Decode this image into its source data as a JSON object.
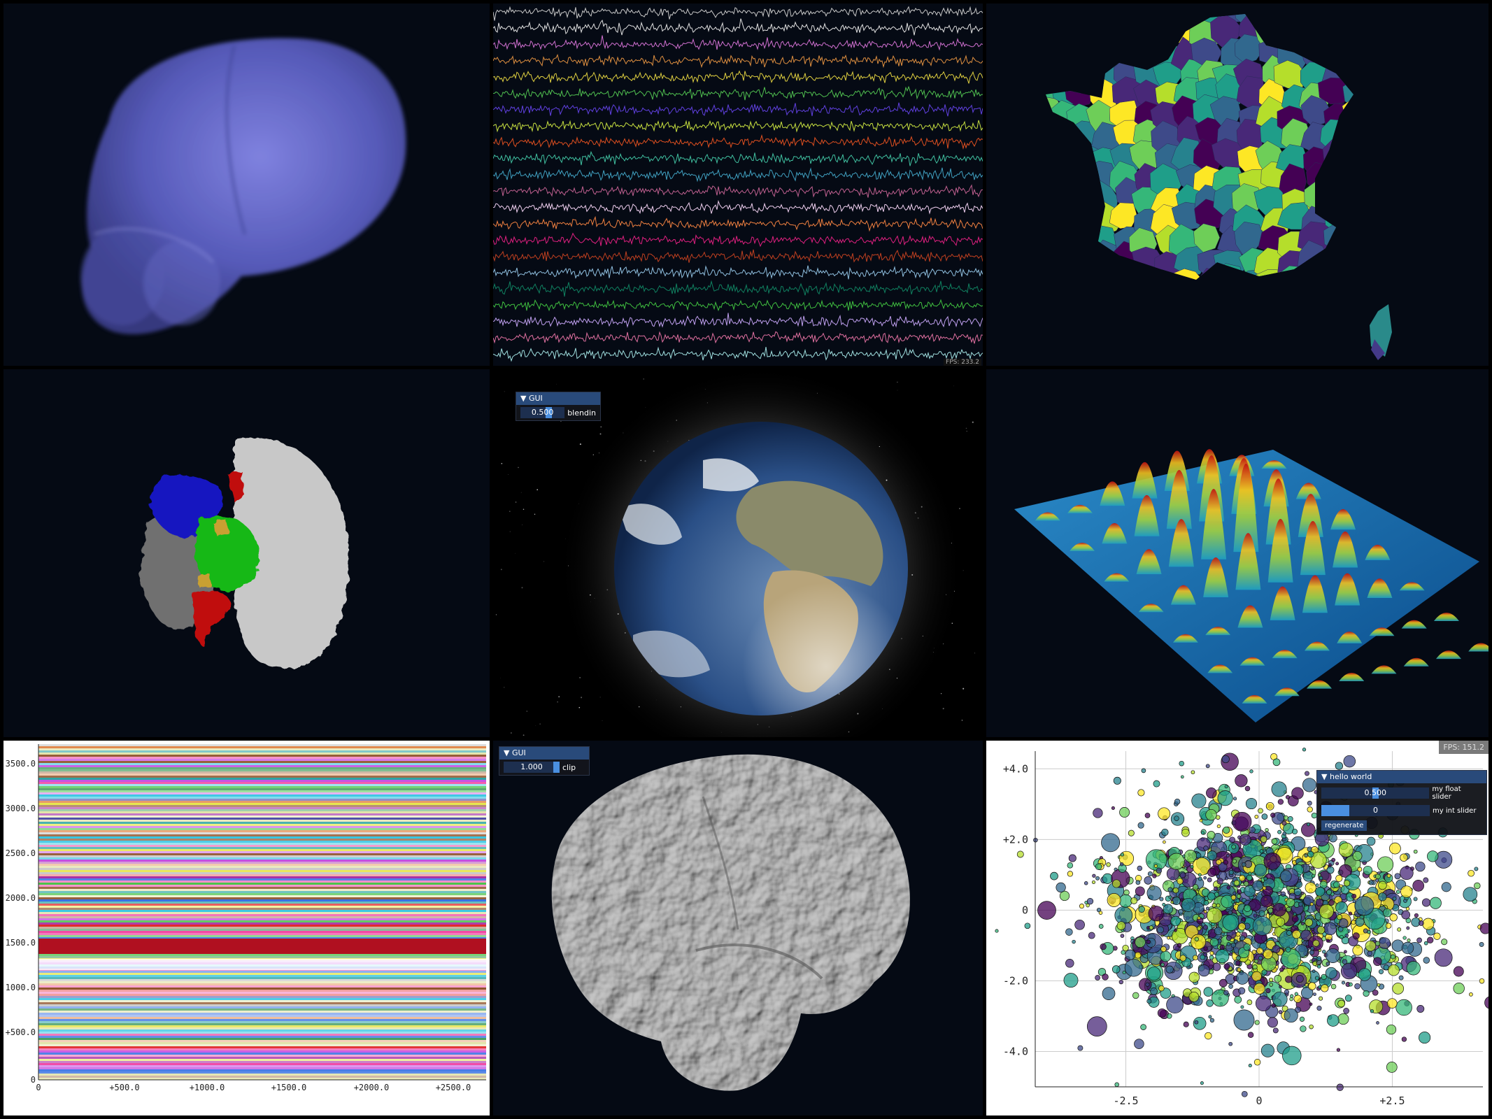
{
  "panels": {
    "brain_mesh": {
      "icon": "translucent-brain-volume",
      "color": "#6a6cd8"
    },
    "signal_traces": {
      "icon": "multichannel-signal-traces",
      "channels": 22,
      "overlay_text": "FPS: 233.2"
    },
    "france_map": {
      "icon": "choropleth-map-france",
      "colormap": "viridis"
    },
    "protein": {
      "icon": "protein-surface-model",
      "colors": [
        "#1010c8",
        "#12c012",
        "#c81010",
        "#d0a030",
        "#888888",
        "#c8c8c8"
      ]
    },
    "earth": {
      "icon": "earth-globe",
      "gui": {
        "title": "GUI",
        "value": "0.500",
        "label": "blendin",
        "fraction": 0.5
      }
    },
    "surface": {
      "icon": "wave-surface-plot",
      "colormap": "jet"
    },
    "raster": {
      "icon": "raster-plot",
      "y_ticks": [
        "3500.0",
        "3000.0",
        "2500.0",
        "2000.0",
        "1500.0",
        "1000.0",
        "+500.0",
        "0"
      ],
      "x_ticks": [
        "0",
        "+500.0",
        "+1000.0",
        "+1500.0",
        "+2000.0",
        "+2500.0"
      ]
    },
    "mri_brain": {
      "icon": "mri-brain-surface",
      "gui": {
        "title": "GUI",
        "value": "1.000",
        "label": "clip",
        "fraction": 1.0
      }
    },
    "scatter": {
      "fps": "FPS: 151.2",
      "gui": {
        "title": "hello world",
        "float_value": "0.500",
        "float_label": "my float slider",
        "float_fraction": 0.5,
        "int_value": "0",
        "int_label": "my int slider",
        "button": "regenerate"
      }
    }
  },
  "chart_data": {
    "type": "scatter",
    "x_ticks": [
      "-2.5",
      "0",
      "+2.5"
    ],
    "y_ticks": [
      "+4.0",
      "+2.0",
      "0",
      "-2.0",
      "-4.0"
    ],
    "xlim": [
      -4.2,
      4.2
    ],
    "ylim": [
      -5.0,
      4.5
    ],
    "distribution": "gaussian cloud centred at (0,0), std ≈ 1.5, marker size varies",
    "colormap": "viridis",
    "grid": true
  }
}
